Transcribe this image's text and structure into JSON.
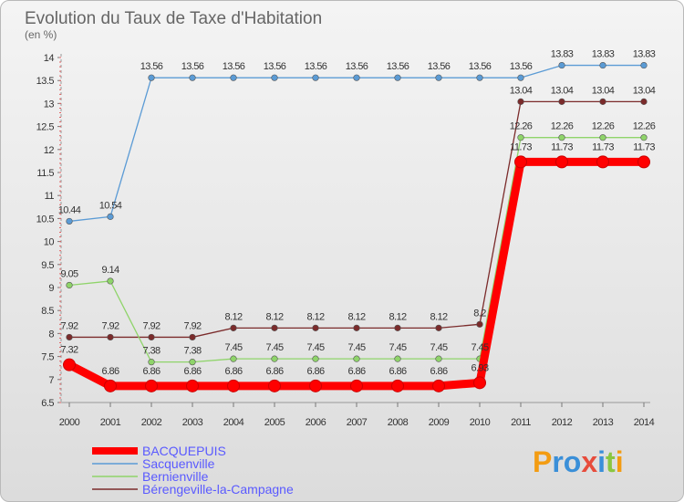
{
  "chart_data": {
    "type": "line",
    "title": "Evolution du Taux de Taxe d'Habitation",
    "subtitle": "(en %)",
    "x": [
      "2000",
      "2001",
      "2002",
      "2003",
      "2004",
      "2005",
      "2006",
      "2007",
      "2008",
      "2009",
      "2010",
      "2011",
      "2012",
      "2013",
      "2014"
    ],
    "ylim": [
      6.5,
      14
    ],
    "yticks": [
      "6.5",
      "7",
      "7.5",
      "8",
      "8.5",
      "9",
      "9.5",
      "10",
      "10.5",
      "11",
      "11.5",
      "12",
      "12.5",
      "13",
      "13.5",
      "14"
    ],
    "grid": false,
    "legend_position": "bottom-left",
    "series": [
      {
        "name": "BACQUEPUIS",
        "color": "#ff0000",
        "values": [
          7.32,
          6.86,
          6.86,
          6.86,
          6.86,
          6.86,
          6.86,
          6.86,
          6.86,
          6.86,
          6.93,
          11.73,
          11.73,
          11.73,
          11.73
        ],
        "labels": [
          "7.32",
          "6.86",
          "6.86",
          "6.86",
          "6.86",
          "6.86",
          "6.86",
          "6.86",
          "6.86",
          "6.86",
          "6.93",
          "11.73",
          "11.73",
          "11.73",
          "11.73"
        ]
      },
      {
        "name": "Sacquenville",
        "color": "#5b9bd5",
        "values": [
          10.44,
          10.54,
          13.56,
          13.56,
          13.56,
          13.56,
          13.56,
          13.56,
          13.56,
          13.56,
          13.56,
          13.56,
          13.83,
          13.83,
          13.83
        ],
        "labels": [
          "10.44",
          "10.54",
          "13.56",
          "13.56",
          "13.56",
          "13.56",
          "13.56",
          "13.56",
          "13.56",
          "13.56",
          "13.56",
          "13.56",
          "13.83",
          "13.83",
          "13.83"
        ]
      },
      {
        "name": "Bernienville",
        "color": "#8fd46a",
        "values": [
          9.05,
          9.14,
          7.38,
          7.38,
          7.45,
          7.45,
          7.45,
          7.45,
          7.45,
          7.45,
          7.45,
          12.26,
          12.26,
          12.26,
          12.26
        ],
        "labels": [
          "9.05",
          "9.14",
          "7.38",
          "7.38",
          "7.45",
          "7.45",
          "7.45",
          "7.45",
          "7.45",
          "7.45",
          "7.45",
          "12.26",
          "12.26",
          "12.26",
          "12.26"
        ]
      },
      {
        "name": "Bérengeville-la-Campagne",
        "color": "#7b2b2b",
        "values": [
          7.92,
          7.92,
          7.92,
          7.92,
          8.12,
          8.12,
          8.12,
          8.12,
          8.12,
          8.12,
          8.2,
          13.04,
          13.04,
          13.04,
          13.04
        ],
        "labels": [
          "7.92",
          "7.92",
          "7.92",
          "7.92",
          "8.12",
          "8.12",
          "8.12",
          "8.12",
          "8.12",
          "8.12",
          "8.2",
          "13.04",
          "13.04",
          "13.04",
          "13.04"
        ]
      }
    ]
  },
  "logo": {
    "text": "Proxiti",
    "colors": [
      "#f39c12",
      "#3a8fd8",
      "#3a8fd8",
      "#e74c3c",
      "#3a8fd8",
      "#8ac640",
      "#f39c12"
    ]
  }
}
